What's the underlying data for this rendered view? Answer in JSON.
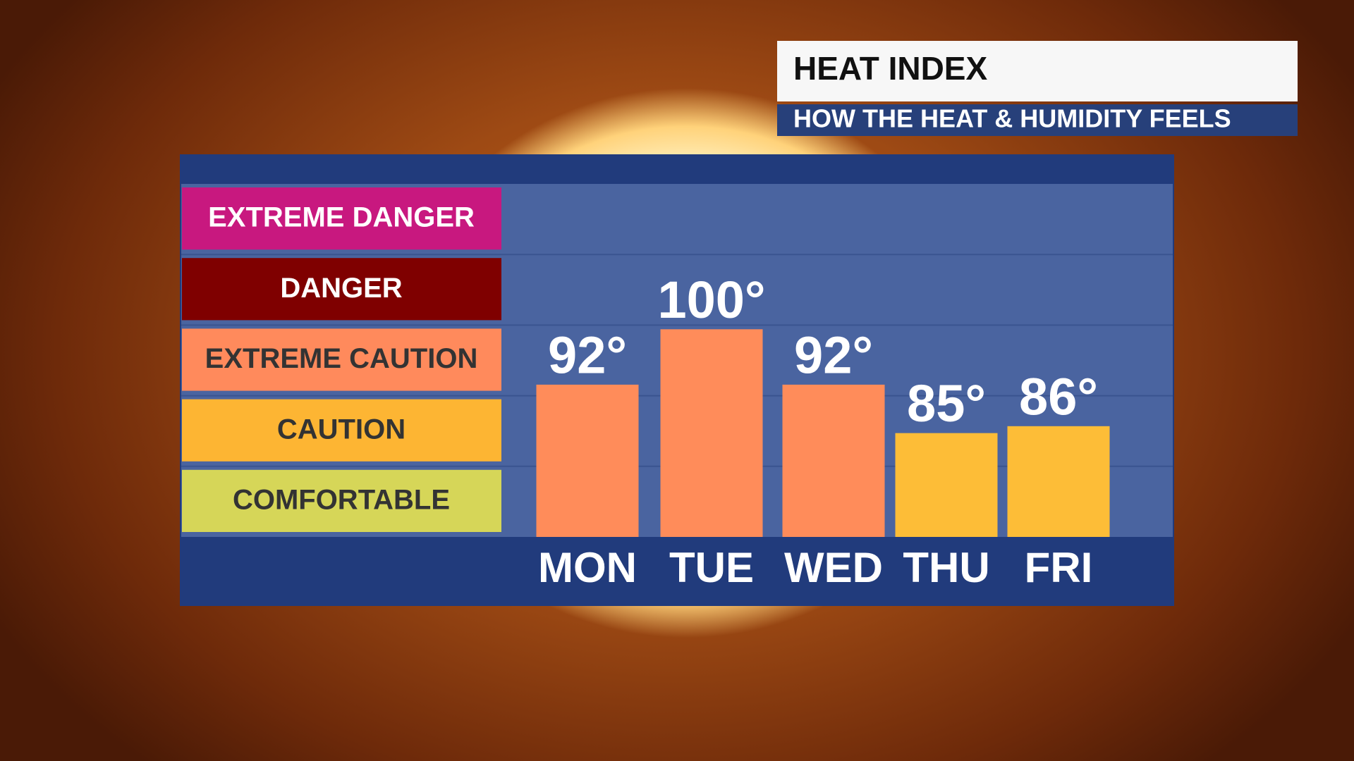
{
  "chart_data": {
    "type": "bar",
    "title": "HEAT INDEX",
    "subtitle": "HOW THE HEAT & HUMIDITY FEELS",
    "categories": [
      "MON",
      "TUE",
      "WED",
      "THU",
      "FRI"
    ],
    "values": [
      92,
      100,
      92,
      85,
      86
    ],
    "value_labels": [
      "92°",
      "100°",
      "92°",
      "85°",
      "86°"
    ],
    "colors": [
      "#ff8c5a",
      "#ff8c5a",
      "#ff8c5a",
      "#fdbd37",
      "#fdbd37"
    ],
    "ylim": [
      70,
      121
    ],
    "bands": [
      {
        "label": "EXTREME DANGER",
        "color": "#c8187f",
        "text_color": "#ffffff"
      },
      {
        "label": "DANGER",
        "color": "#7f0000",
        "text_color": "#ffffff"
      },
      {
        "label": "EXTREME CAUTION",
        "color": "#ff8a5c",
        "text_color": "#333333"
      },
      {
        "label": "CAUTION",
        "color": "#fdb533",
        "text_color": "#333333"
      },
      {
        "label": "COMFORTABLE",
        "color": "#d6d658",
        "text_color": "#333333"
      }
    ]
  }
}
